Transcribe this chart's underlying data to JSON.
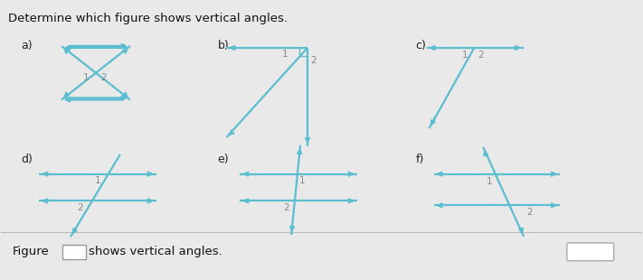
{
  "title": "Determine which figure shows vertical angles.",
  "bg_color": "#e9e9e9",
  "line_color": "#5bbdd0",
  "label_color": "#888888",
  "text_dark": "#222222",
  "footer_text": "Figure",
  "footer_suffix": "shows vertical angles.",
  "dropdown_char": "▼",
  "lw": 1.6
}
